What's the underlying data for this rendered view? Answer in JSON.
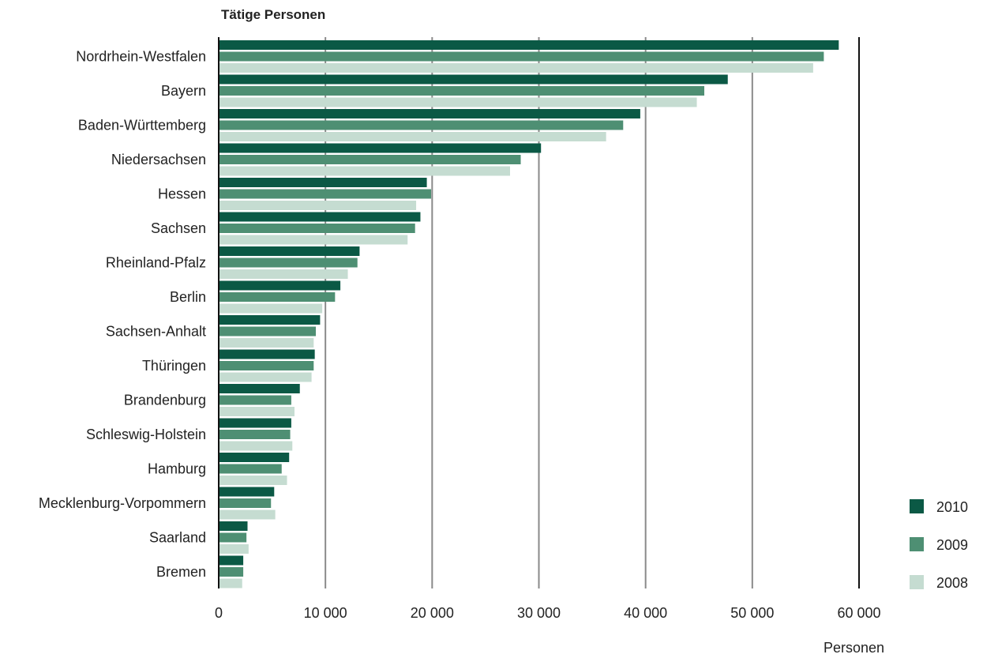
{
  "chart_data": {
    "type": "bar",
    "orientation": "horizontal",
    "title": "Tätige Personen",
    "xlabel": "Personen",
    "xlim": [
      0,
      60000
    ],
    "xticks": [
      0,
      10000,
      20000,
      30000,
      40000,
      50000,
      60000
    ],
    "xtick_labels": [
      "0",
      "10 000",
      "20 000",
      "30 000",
      "40 000",
      "50 000",
      "60 000"
    ],
    "grid": true,
    "legend_position": "bottom-right",
    "categories": [
      "Nordrhein-Westfalen",
      "Bayern",
      "Baden-Württemberg",
      "Niedersachsen",
      "Hessen",
      "Sachsen",
      "Rheinland-Pfalz",
      "Berlin",
      "Sachsen-Anhalt",
      "Thüringen",
      "Brandenburg",
      "Schleswig-Holstein",
      "Hamburg",
      "Mecklenburg-Vorpommern",
      "Saarland",
      "Bremen"
    ],
    "series": [
      {
        "name": "2010",
        "color": "#0b5945",
        "values": [
          58100,
          47700,
          39500,
          30200,
          19500,
          18900,
          13200,
          11400,
          9500,
          9000,
          7600,
          6800,
          6600,
          5200,
          2700,
          2300
        ]
      },
      {
        "name": "2009",
        "color": "#4e8f73",
        "values": [
          56700,
          45500,
          37900,
          28300,
          19900,
          18400,
          13000,
          10900,
          9100,
          8900,
          6800,
          6700,
          5900,
          4900,
          2600,
          2300
        ]
      },
      {
        "name": "2008",
        "color": "#c5dcd1",
        "values": [
          55700,
          44800,
          36300,
          27300,
          18500,
          17700,
          12100,
          9700,
          8900,
          8700,
          7100,
          6900,
          6400,
          5300,
          2800,
          2200
        ]
      }
    ]
  }
}
